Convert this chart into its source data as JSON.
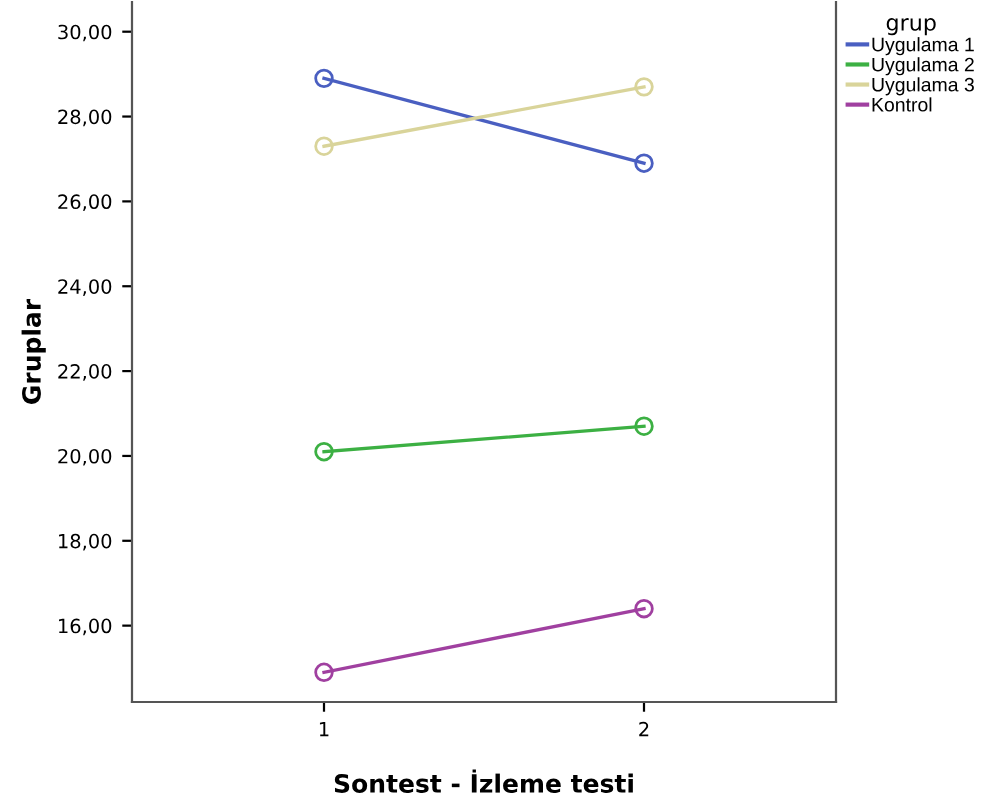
{
  "chart_data": {
    "type": "line",
    "xlabel": "Sontest - İzleme testi",
    "ylabel": "Gruplar",
    "legend_title": "grup",
    "categories": [
      "1",
      "2"
    ],
    "series": [
      {
        "name": "Uygulama 1",
        "color": "#4a5fc1",
        "values": [
          28.9,
          26.9
        ]
      },
      {
        "name": "Uygulama 2",
        "color": "#3cb043",
        "values": [
          20.1,
          20.7
        ]
      },
      {
        "name": "Uygulama 3",
        "color": "#d9d49a",
        "values": [
          27.3,
          28.7
        ]
      },
      {
        "name": "Kontrol",
        "color": "#a040a0",
        "values": [
          14.9,
          16.4
        ]
      }
    ],
    "ylim": [
      14.2,
      30.7
    ],
    "yticks": [
      {
        "value": 16,
        "label": "16,00"
      },
      {
        "value": 18,
        "label": "18,00"
      },
      {
        "value": 20,
        "label": "20,00"
      },
      {
        "value": 22,
        "label": "22,00"
      },
      {
        "value": 24,
        "label": "24,00"
      },
      {
        "value": 26,
        "label": "26,00"
      },
      {
        "value": 28,
        "label": "28,00"
      },
      {
        "value": 30,
        "label": "30,00"
      }
    ],
    "grid": false,
    "legend": "top right",
    "marker": "circle",
    "line_style": "solid"
  }
}
